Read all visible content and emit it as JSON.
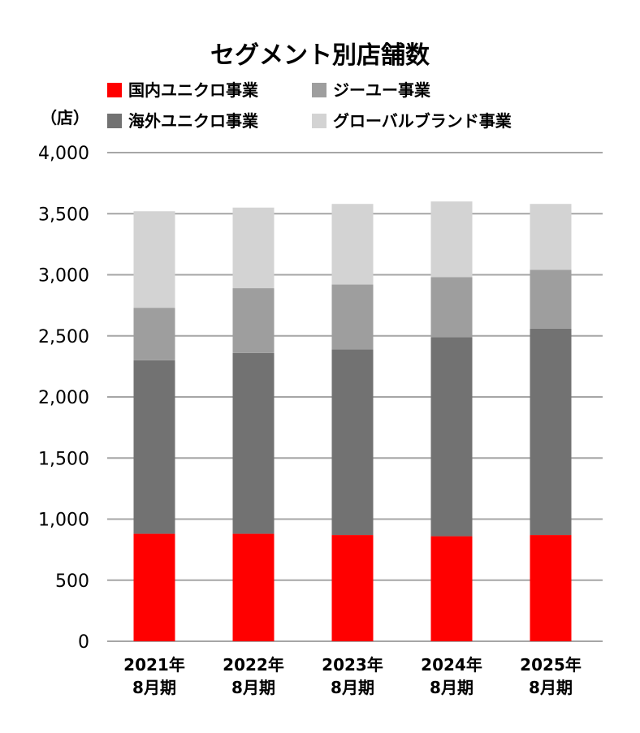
{
  "chart_data": {
    "type": "bar",
    "stacked": true,
    "title": "セグメント別店舗数",
    "unit_label": "（店）",
    "categories": [
      [
        "2021年",
        "8月期"
      ],
      [
        "2022年",
        "8月期"
      ],
      [
        "2023年",
        "8月期"
      ],
      [
        "2024年",
        "8月期"
      ],
      [
        "2025年",
        "8月期"
      ]
    ],
    "ylim": [
      0,
      4000
    ],
    "yticks": [
      "0",
      "500",
      "1,000",
      "1,500",
      "2,000",
      "2,500",
      "3,000",
      "3,500",
      "4,000"
    ],
    "ytick_values": [
      0,
      500,
      1000,
      1500,
      2000,
      2500,
      3000,
      3500,
      4000
    ],
    "grid": true,
    "legend_position": "top",
    "series": [
      {
        "name": "国内ユニクロ事業",
        "color": "#ff0000",
        "values": [
          880,
          880,
          870,
          860,
          870
        ]
      },
      {
        "name": "海外ユニクロ事業",
        "color": "#727272",
        "values": [
          1420,
          1480,
          1520,
          1630,
          1690
        ]
      },
      {
        "name": "ジーユー事業",
        "color": "#9e9e9e",
        "values": [
          430,
          530,
          530,
          490,
          480
        ]
      },
      {
        "name": "グローバルブランド事業",
        "color": "#d3d3d3",
        "values": [
          790,
          660,
          660,
          620,
          540
        ]
      }
    ],
    "legend_order": [
      0,
      2,
      1,
      3
    ]
  }
}
